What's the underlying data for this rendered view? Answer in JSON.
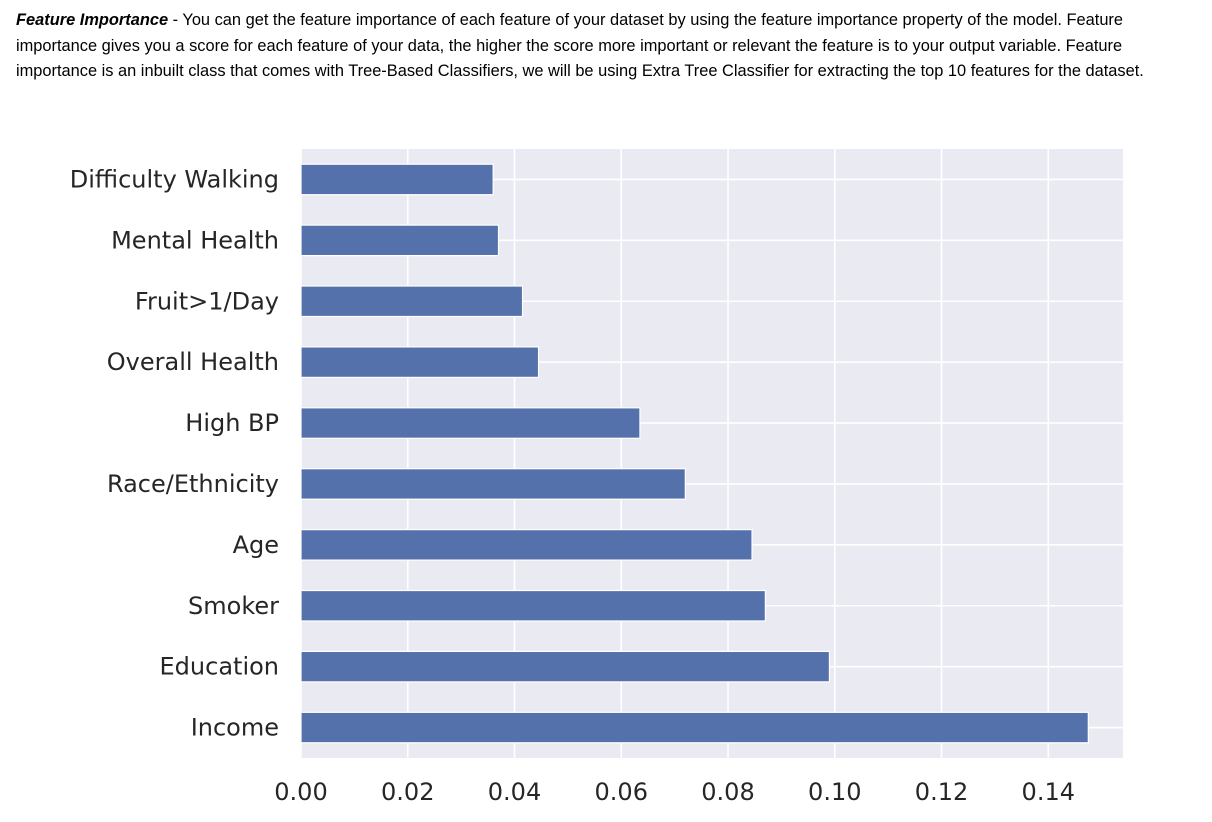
{
  "intro": {
    "lead": "Feature Importance",
    "text": " - You can get the feature importance of each feature of your dataset by using the feature importance property of the model. Feature importance gives you a score for each feature of your data, the higher the score more important or relevant the feature is to your output variable. Feature importance is an inbuilt class that comes with Tree-Based Classifiers, we will be using Extra Tree Classifier for extracting the top 10 features for the dataset."
  },
  "chart_data": {
    "type": "bar",
    "orientation": "horizontal",
    "categories": [
      "Difficulty Walking",
      "Mental Health",
      "Fruit>1/Day",
      "Overall Health",
      "High BP",
      "Race/Ethnicity",
      "Age",
      "Smoker",
      "Education",
      "Income"
    ],
    "values": [
      0.036,
      0.037,
      0.0415,
      0.0445,
      0.0635,
      0.072,
      0.0845,
      0.087,
      0.099,
      0.1475
    ],
    "xlim": [
      0,
      0.154
    ],
    "xticks": [
      "0.00",
      "0.02",
      "0.04",
      "0.06",
      "0.08",
      "0.10",
      "0.12",
      "0.14"
    ],
    "xtick_values": [
      0,
      0.02,
      0.04,
      0.06,
      0.08,
      0.1,
      0.12,
      0.14
    ],
    "grid": true,
    "colors": {
      "bar": "#5471ab",
      "plot_bg": "#eaeaf2",
      "grid": "#ffffff"
    }
  }
}
